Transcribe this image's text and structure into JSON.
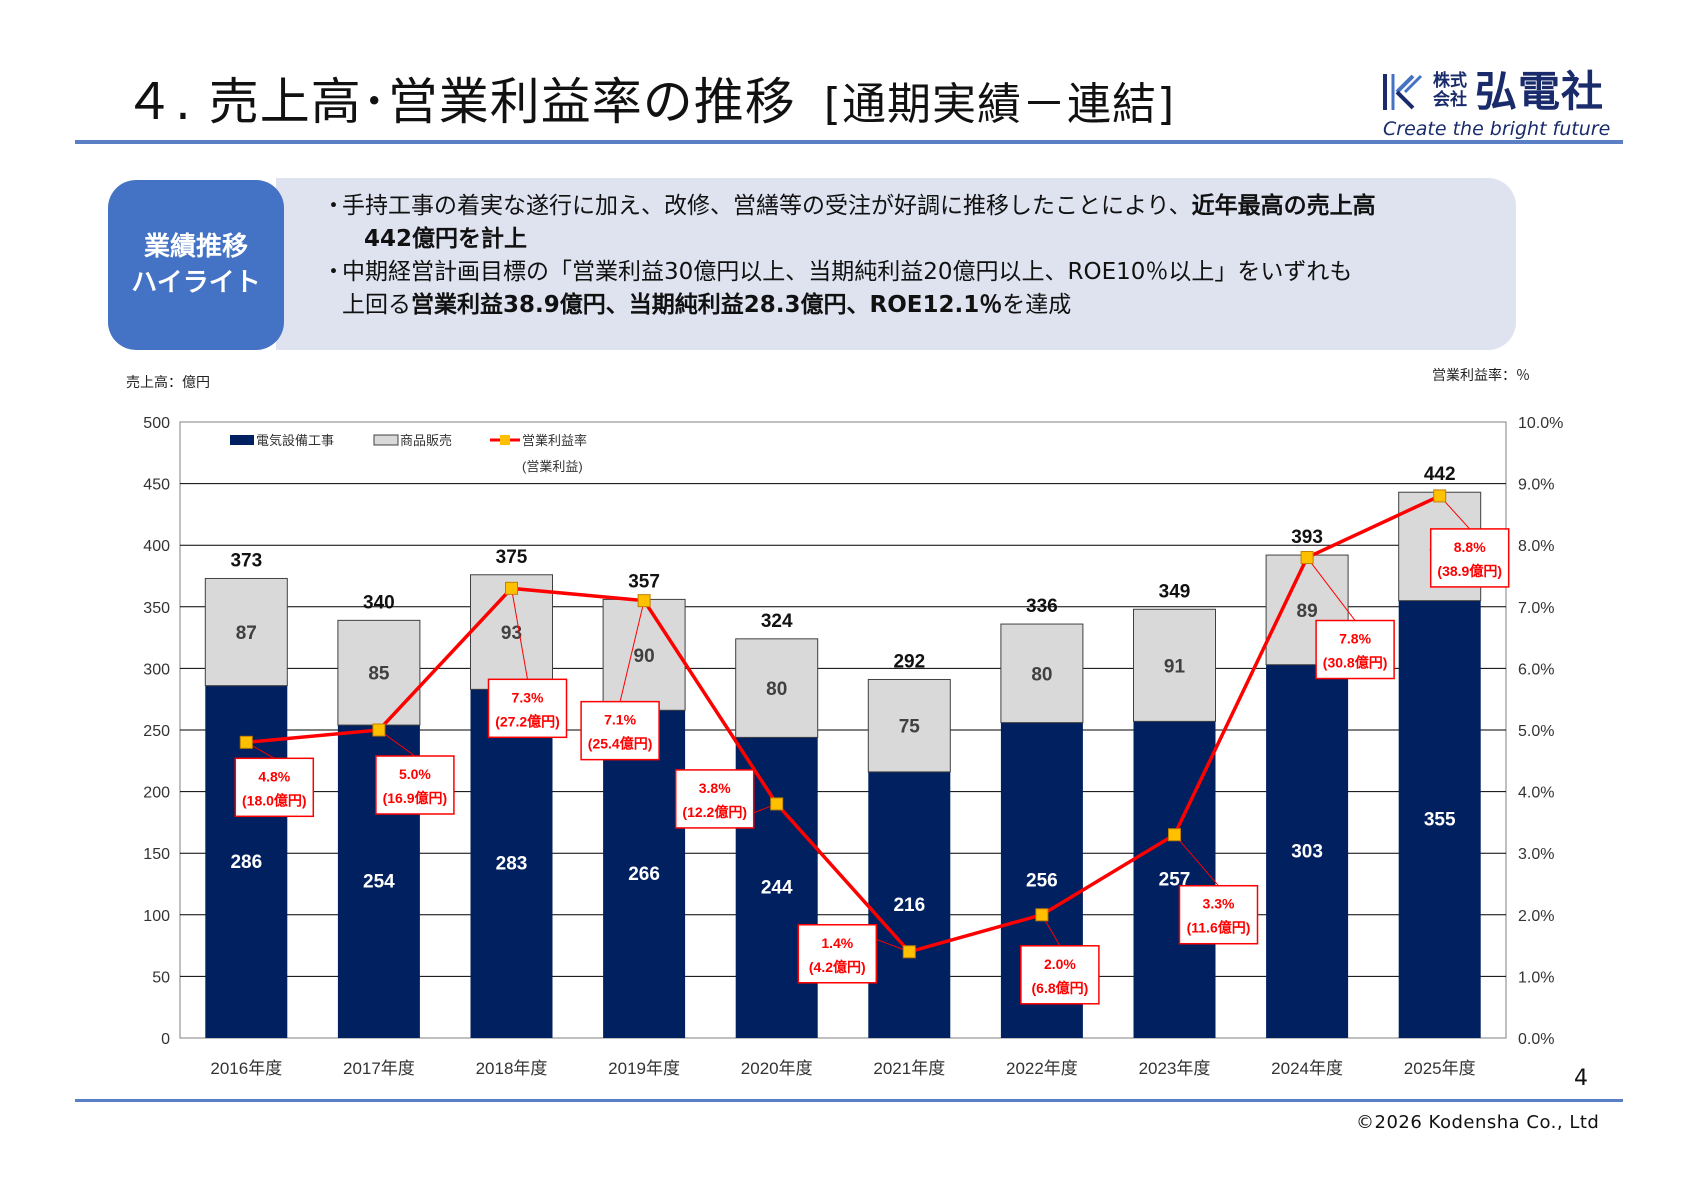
{
  "header": {
    "title": "４. 売上高･営業利益率の推移",
    "subtitle": "[通期実績－連結]"
  },
  "logo": {
    "kabushiki": "株式会社",
    "name": "弘電社",
    "tagline": "Create the bright future",
    "color": "#1a2b6b"
  },
  "highlight": {
    "tag_line1": "業績推移",
    "tag_line2": "ハイライト",
    "bullet": "・",
    "item1_a": "手持工事の着実な遂行に加え、改修、営繕等の受注が好調に推移したことにより、",
    "item1_b": "近年最高の売上高",
    "item1_c": "442億円を計上",
    "item2_a": "中期経営計画目標の「営業利益30億円以上、当期純利益20億円以上、ROE10％以上」をいずれも",
    "item2_b": "上回る",
    "item2_c": "営業利益38.9億円、当期純利益28.3億円、ROE12.1％",
    "item2_d": "を達成"
  },
  "chart_data": {
    "type": "bar",
    "stacked": true,
    "left_unit": "売上高：億円",
    "right_unit": "営業利益率：％",
    "categories": [
      "2016年度",
      "2017年度",
      "2018年度",
      "2019年度",
      "2020年度",
      "2021年度",
      "2022年度",
      "2023年度",
      "2024年度",
      "2025年度"
    ],
    "series": [
      {
        "name": "電気設備工事",
        "color": "#002060",
        "values": [
          286,
          254,
          283,
          266,
          244,
          216,
          256,
          257,
          303,
          355
        ]
      },
      {
        "name": "商品販売",
        "color": "#d9d9d9",
        "values": [
          87,
          85,
          93,
          90,
          80,
          75,
          80,
          91,
          89,
          88
        ]
      }
    ],
    "totals": [
      373,
      340,
      375,
      357,
      324,
      292,
      336,
      349,
      393,
      442
    ],
    "line": {
      "name": "営業利益率",
      "name_sub": "(営業利益)",
      "color": "#ff0000",
      "marker_color": "#ffc000",
      "axis": "right",
      "values": [
        4.8,
        5.0,
        7.3,
        7.1,
        3.8,
        1.4,
        2.0,
        3.3,
        7.8,
        8.8
      ],
      "labels_pct": [
        "4.8%",
        "5.0%",
        "7.3%",
        "7.1%",
        "3.8%",
        "1.4%",
        "2.0%",
        "3.3%",
        "7.8%",
        "8.8%"
      ],
      "labels_profit": [
        "(18.0億円)",
        "(16.9億円)",
        "(27.2億円)",
        "(25.4億円)",
        "(12.2億円)",
        "(4.2億円)",
        "(6.8億円)",
        "(11.6億円)",
        "(30.8億円)",
        "(38.9億円)"
      ]
    },
    "ylim": [
      0,
      500
    ],
    "y_ticks": [
      "0",
      "50",
      "100",
      "150",
      "200",
      "250",
      "300",
      "350",
      "400",
      "450",
      "500"
    ],
    "y2lim": [
      0,
      10
    ],
    "y2_ticks": [
      "0.0%",
      "1.0%",
      "2.0%",
      "3.0%",
      "4.0%",
      "5.0%",
      "6.0%",
      "7.0%",
      "8.0%",
      "9.0%",
      "10.0%"
    ],
    "grid": true,
    "legend": "top-left"
  },
  "footer": {
    "page_number": "4",
    "copyright": "©2026  Kodensha Co., Ltd"
  }
}
